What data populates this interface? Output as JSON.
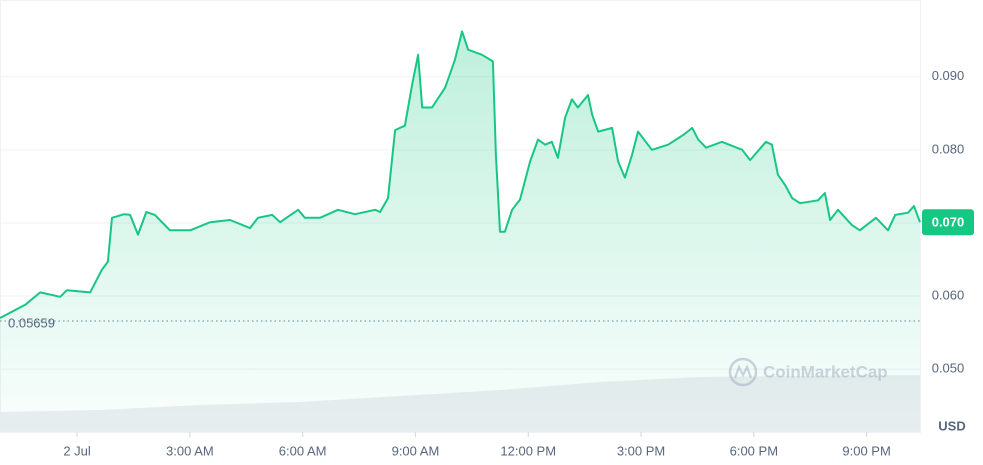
{
  "chart_data": {
    "type": "line",
    "series": [
      {
        "color": "#16c784",
        "x": [
          -2.05,
          -1.38,
          -0.98,
          -0.45,
          -0.27,
          0.35,
          0.66,
          0.82,
          0.93,
          1.25,
          1.41,
          1.62,
          1.84,
          2.07,
          2.47,
          3.01,
          3.54,
          4.07,
          4.6,
          4.81,
          5.19,
          5.4,
          5.88,
          6.06,
          6.46,
          6.94,
          7.39,
          7.93,
          8.06,
          8.27,
          8.46,
          8.72,
          8.91,
          9.07,
          9.18,
          9.44,
          9.79,
          10.05,
          10.24,
          10.4,
          10.77,
          11.06,
          11.14,
          11.25,
          11.38,
          11.57,
          11.78,
          12.05,
          12.26,
          12.45,
          12.63,
          12.79,
          12.98,
          13.16,
          13.32,
          13.59,
          13.7,
          13.86,
          14.23,
          14.39,
          14.57,
          14.76,
          14.92,
          15.29,
          15.72,
          16.14,
          16.36,
          16.52,
          16.73,
          17.15,
          17.69,
          17.9,
          18.32,
          18.48,
          18.64,
          18.83,
          19.02,
          19.23,
          19.71,
          19.89,
          20.03,
          20.24,
          20.61,
          20.82,
          21.25,
          21.57,
          21.76,
          22.1,
          22.26,
          22.42
        ],
        "values": [
          0.057,
          0.0588,
          0.0605,
          0.0599,
          0.0608,
          0.0605,
          0.0636,
          0.0647,
          0.0707,
          0.0712,
          0.0711,
          0.0684,
          0.0715,
          0.0711,
          0.069,
          0.069,
          0.0701,
          0.0704,
          0.0693,
          0.0707,
          0.0711,
          0.0701,
          0.0718,
          0.0707,
          0.0707,
          0.0718,
          0.0712,
          0.0718,
          0.0715,
          0.0734,
          0.0827,
          0.0833,
          0.0889,
          0.093,
          0.0858,
          0.0858,
          0.0885,
          0.0923,
          0.0962,
          0.0937,
          0.093,
          0.0921,
          0.0793,
          0.0688,
          0.0688,
          0.0718,
          0.0732,
          0.0784,
          0.0814,
          0.0807,
          0.0811,
          0.0789,
          0.0844,
          0.0869,
          0.0858,
          0.0875,
          0.0848,
          0.0825,
          0.083,
          0.0784,
          0.0762,
          0.0793,
          0.0825,
          0.08,
          0.0807,
          0.0821,
          0.083,
          0.0814,
          0.0803,
          0.0811,
          0.08,
          0.0786,
          0.0811,
          0.0807,
          0.0766,
          0.0752,
          0.0734,
          0.0727,
          0.0731,
          0.0741,
          0.0704,
          0.0718,
          0.0697,
          0.069,
          0.0707,
          0.069,
          0.0711,
          0.0714,
          0.0723,
          0.0701
        ]
      }
    ],
    "xlim": [
      -2.05,
      22.42
    ],
    "xticks": [
      {
        "value": 0,
        "label": "2 Jul"
      },
      {
        "value": 3,
        "label": "3:00 AM"
      },
      {
        "value": 6,
        "label": "6:00 AM"
      },
      {
        "value": 9,
        "label": "9:00 AM"
      },
      {
        "value": 12,
        "label": "12:00 PM"
      },
      {
        "value": 15,
        "label": "3:00 PM"
      },
      {
        "value": 18,
        "label": "6:00 PM"
      },
      {
        "value": 21,
        "label": "9:00 PM"
      }
    ],
    "ylim": [
      0.0414,
      0.1005
    ],
    "yticks": [
      {
        "value": 0.05,
        "label": "0.050"
      },
      {
        "value": 0.06,
        "label": "0.060"
      },
      {
        "value": 0.07,
        "label": "0.070"
      },
      {
        "value": 0.08,
        "label": "0.080"
      },
      {
        "value": 0.09,
        "label": "0.090"
      }
    ],
    "y_axis_label": "USD",
    "grid": true,
    "reference_line": {
      "value": 0.05659,
      "label": "0.05659"
    },
    "last_price_label": "0.070",
    "watermark": "CoinMarketCap"
  }
}
